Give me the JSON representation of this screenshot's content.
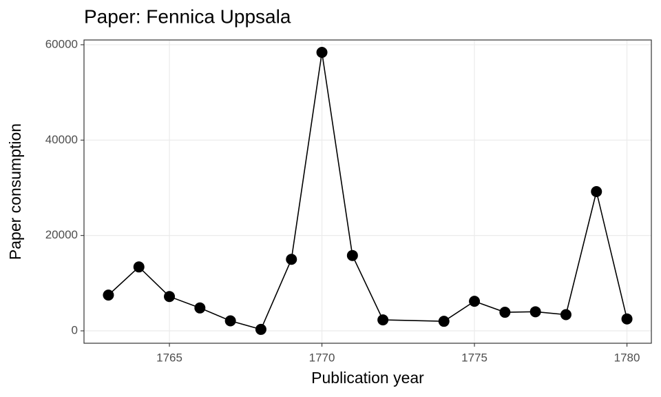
{
  "chart_data": {
    "type": "line",
    "title": "Paper: Fennica Uppsala",
    "x_label": "Publication year",
    "y_label": "Paper consumption",
    "x": [
      1763,
      1764,
      1765,
      1766,
      1767,
      1768,
      1769,
      1770,
      1771,
      1772,
      1774,
      1775,
      1776,
      1777,
      1778,
      1779,
      1780
    ],
    "values": [
      7500,
      13400,
      7200,
      4800,
      2100,
      300,
      15000,
      58400,
      15800,
      2300,
      2000,
      6200,
      3900,
      4000,
      3400,
      29200,
      2500
    ],
    "color": "#000000",
    "xlim": [
      1762.2,
      1780.8
    ],
    "xticks": [
      1765,
      1770,
      1775,
      1780
    ],
    "ylim": [
      -2600,
      61000
    ],
    "yticks": [
      0,
      20000,
      40000,
      60000
    ],
    "grid": true
  }
}
